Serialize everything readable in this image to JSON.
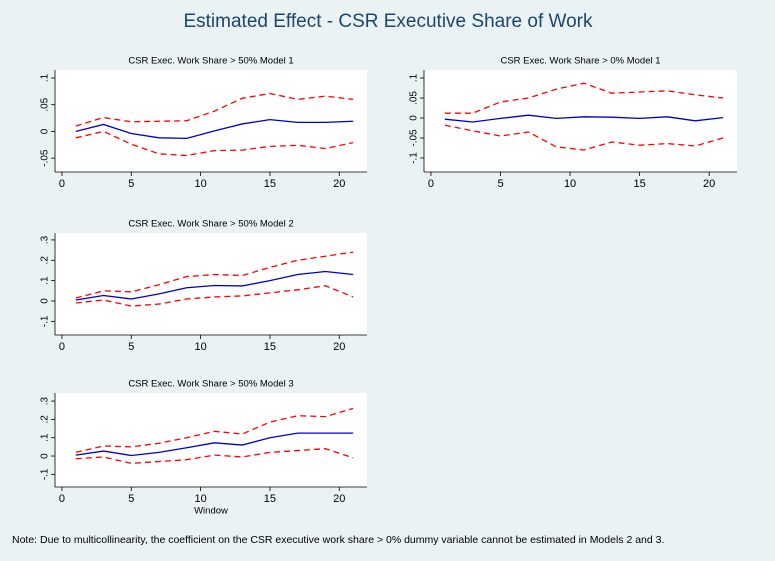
{
  "title": "Estimated Effect - CSR Executive Share of Work",
  "note": "Note: Due to multicollinearity, the coefficient on the CSR executive work share > 0% dummy variable cannot be estimated in Models 2 and 3.",
  "chart_data": [
    {
      "type": "line",
      "title": "CSR Exec. Work Share > 50% Model 1",
      "x": [
        1,
        3,
        5,
        7,
        9,
        11,
        13,
        15,
        17,
        19,
        21
      ],
      "xlim": [
        -0.5,
        22
      ],
      "xticks": [
        0,
        5,
        10,
        15,
        20
      ],
      "ylim": [
        -0.076,
        0.115
      ],
      "yticks": [
        {
          "value": -0.05,
          "label": "-.05"
        },
        0,
        {
          "value": 0.05,
          "label": ".05"
        },
        {
          "value": 0.1,
          "label": ".1"
        }
      ],
      "series": [
        {
          "color": "#0000cc",
          "dashed": false,
          "values": [
            0,
            0.013,
            -0.004,
            -0.012,
            -0.013,
            0.001,
            0.014,
            0.022,
            0.017,
            0.017,
            0.019
          ]
        },
        {
          "color": "#ff0000",
          "dashed": true,
          "values": [
            0.01,
            0.026,
            0.018,
            0.019,
            0.02,
            0.038,
            0.062,
            0.071,
            0.06,
            0.066,
            0.06
          ]
        },
        {
          "color": "#ff0000",
          "dashed": true,
          "values": [
            -0.012,
            0.0,
            -0.024,
            -0.042,
            -0.045,
            -0.036,
            -0.035,
            -0.028,
            -0.026,
            -0.032,
            -0.021
          ]
        }
      ]
    },
    {
      "type": "line",
      "title": "CSR Exec. Work Share > 0% Model 1",
      "x": [
        1,
        3,
        5,
        7,
        9,
        11,
        13,
        15,
        17,
        19,
        21
      ],
      "xlim": [
        -0.5,
        22
      ],
      "xticks": [
        0,
        5,
        10,
        15,
        20
      ],
      "ylim": [
        -0.135,
        0.12
      ],
      "yticks": [
        {
          "value": -0.1,
          "label": "-.1"
        },
        {
          "value": -0.05,
          "label": "-.05"
        },
        0,
        {
          "value": 0.05,
          "label": ".05"
        },
        {
          "value": 0.1,
          "label": ".1"
        }
      ],
      "series": [
        {
          "color": "#0000cc",
          "dashed": false,
          "values": [
            -0.003,
            -0.01,
            -0.001,
            0.007,
            -0.001,
            0.003,
            0.002,
            -0.001,
            0.003,
            -0.007,
            0.001
          ]
        },
        {
          "color": "#ff0000",
          "dashed": true,
          "values": [
            0.012,
            0.012,
            0.04,
            0.05,
            0.072,
            0.087,
            0.062,
            0.065,
            0.068,
            0.058,
            0.05
          ]
        },
        {
          "color": "#ff0000",
          "dashed": true,
          "values": [
            -0.018,
            -0.032,
            -0.045,
            -0.035,
            -0.072,
            -0.08,
            -0.06,
            -0.068,
            -0.064,
            -0.07,
            -0.05
          ]
        }
      ]
    },
    {
      "type": "line",
      "title": "CSR Exec. Work Share > 50% Model 2",
      "x": [
        1,
        3,
        5,
        7,
        9,
        11,
        13,
        15,
        17,
        19,
        21
      ],
      "xlim": [
        -0.5,
        22
      ],
      "xticks": [
        0,
        5,
        10,
        15,
        20
      ],
      "ylim": [
        -0.167,
        0.334
      ],
      "yticks": [
        {
          "value": -0.1,
          "label": "-.1"
        },
        0,
        {
          "value": 0.1,
          "label": ".1"
        },
        {
          "value": 0.2,
          "label": ".2"
        },
        {
          "value": 0.3,
          "label": ".3"
        }
      ],
      "series": [
        {
          "color": "#0000cc",
          "dashed": false,
          "values": [
            0.005,
            0.027,
            0.01,
            0.035,
            0.065,
            0.076,
            0.074,
            0.1,
            0.13,
            0.145,
            0.13
          ]
        },
        {
          "color": "#ff0000",
          "dashed": true,
          "values": [
            0.015,
            0.05,
            0.045,
            0.08,
            0.12,
            0.13,
            0.125,
            0.165,
            0.2,
            0.22,
            0.24
          ]
        },
        {
          "color": "#ff0000",
          "dashed": true,
          "values": [
            -0.01,
            0.005,
            -0.025,
            -0.015,
            0.01,
            0.02,
            0.025,
            0.04,
            0.055,
            0.075,
            0.02
          ]
        }
      ]
    },
    {
      "type": "line",
      "title": "CSR Exec. Work Share > 50% Model 3",
      "xlabel": "Window",
      "x": [
        1,
        3,
        5,
        7,
        9,
        11,
        13,
        15,
        17,
        19,
        21
      ],
      "xlim": [
        -0.5,
        22
      ],
      "xticks": [
        0,
        5,
        10,
        15,
        20
      ],
      "ylim": [
        -0.169,
        0.344
      ],
      "yticks": [
        {
          "value": -0.1,
          "label": "-.1"
        },
        0,
        {
          "value": 0.1,
          "label": ".1"
        },
        {
          "value": 0.2,
          "label": ".2"
        },
        {
          "value": 0.3,
          "label": ".3"
        }
      ],
      "series": [
        {
          "color": "#0000cc",
          "dashed": false,
          "values": [
            0.005,
            0.027,
            0.003,
            0.02,
            0.045,
            0.072,
            0.06,
            0.1,
            0.125,
            0.125,
            0.125
          ]
        },
        {
          "color": "#ff0000",
          "dashed": true,
          "values": [
            0.02,
            0.055,
            0.05,
            0.07,
            0.1,
            0.135,
            0.12,
            0.185,
            0.22,
            0.215,
            0.26
          ]
        },
        {
          "color": "#ff0000",
          "dashed": true,
          "values": [
            -0.015,
            -0.005,
            -0.04,
            -0.03,
            -0.02,
            0.005,
            -0.005,
            0.02,
            0.03,
            0.04,
            -0.01
          ]
        }
      ]
    }
  ]
}
